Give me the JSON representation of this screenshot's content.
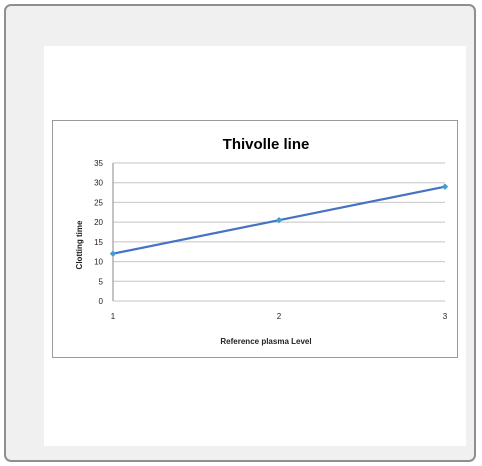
{
  "chart_data": {
    "type": "line",
    "title": "Thivolle line",
    "xlabel": "Reference plasma Level",
    "ylabel": "Clotting time",
    "x": [
      1,
      2,
      3
    ],
    "series": [
      {
        "values": [
          12,
          20.5,
          29
        ],
        "color": "#4472c4",
        "marker_color": "#3f9fcf"
      }
    ],
    "xlim": [
      1,
      3
    ],
    "ylim": [
      0,
      35
    ],
    "yticks": [
      0,
      5,
      10,
      15,
      20,
      25,
      30,
      35
    ],
    "xticks": [
      1,
      2,
      3
    ],
    "grid": true,
    "legend": "none"
  }
}
